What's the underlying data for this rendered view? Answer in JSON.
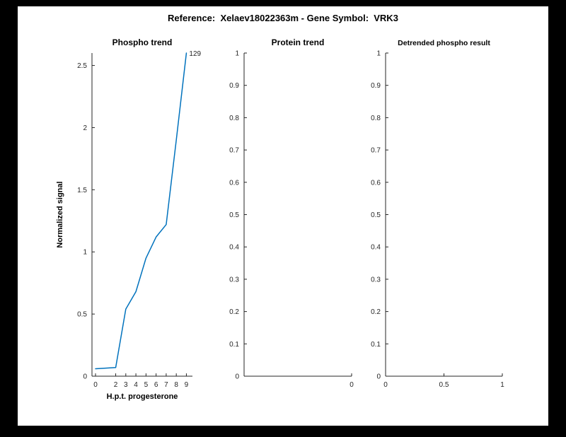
{
  "figure": {
    "title": "Reference:  Xelaev18022363m - Gene Symbol:  VRK3",
    "background": "#ffffff",
    "frame_color": "#000000",
    "axis_color": "#262626",
    "line_color": "#0072BD"
  },
  "chart_data": [
    {
      "type": "line",
      "title": "Phospho trend",
      "xlabel": "H.p.t. progesterone",
      "ylabel": "Normalized signal",
      "x": [
        0,
        2,
        3,
        4,
        5,
        6,
        7,
        8,
        9
      ],
      "y": [
        0.06,
        0.07,
        0.54,
        0.68,
        0.95,
        1.12,
        1.22,
        1.9,
        2.6
      ],
      "xlim": [
        -0.35,
        9.6
      ],
      "ylim": [
        0,
        2.6
      ],
      "xticks": [
        0,
        2,
        3,
        4,
        5,
        6,
        7,
        8,
        9
      ],
      "xticklabels": [
        "0",
        "2",
        "3",
        "4",
        "5",
        "6",
        "7",
        "8",
        "9"
      ],
      "yticks": [
        0,
        0.5,
        1,
        1.5,
        2,
        2.5
      ],
      "yticklabels": [
        "0",
        "0.5",
        "1",
        "1.5",
        "2",
        "2.5"
      ],
      "legend": null,
      "grid": false,
      "annotation": {
        "text": "129",
        "x": 9,
        "y": 2.6
      }
    },
    {
      "type": "line",
      "title": "Protein trend",
      "xlabel": "",
      "ylabel": "",
      "x": [],
      "y": [],
      "xlim": [
        -1,
        0
      ],
      "ylim": [
        0,
        1
      ],
      "xticks": [
        0
      ],
      "xticklabels": [
        "0"
      ],
      "yticks": [
        0,
        0.1,
        0.2,
        0.3,
        0.4,
        0.5,
        0.6,
        0.7,
        0.8,
        0.9,
        1
      ],
      "yticklabels": [
        "0",
        "0.1",
        "0.2",
        "0.3",
        "0.4",
        "0.5",
        "0.6",
        "0.7",
        "0.8",
        "0.9",
        "1"
      ],
      "legend": null,
      "grid": false,
      "annotation": null
    },
    {
      "type": "line",
      "title": "Detrended phospho result",
      "xlabel": "",
      "ylabel": "",
      "x": [],
      "y": [],
      "xlim": [
        0,
        1
      ],
      "ylim": [
        0,
        1
      ],
      "xticks": [
        0,
        0.5,
        1
      ],
      "xticklabels": [
        "0",
        "0.5",
        "1"
      ],
      "yticks": [
        0,
        0.1,
        0.2,
        0.3,
        0.4,
        0.5,
        0.6,
        0.7,
        0.8,
        0.9,
        1
      ],
      "yticklabels": [
        "0",
        "0.1",
        "0.2",
        "0.3",
        "0.4",
        "0.5",
        "0.6",
        "0.7",
        "0.8",
        "0.9",
        "1"
      ],
      "legend": null,
      "grid": false,
      "annotation": null
    }
  ]
}
